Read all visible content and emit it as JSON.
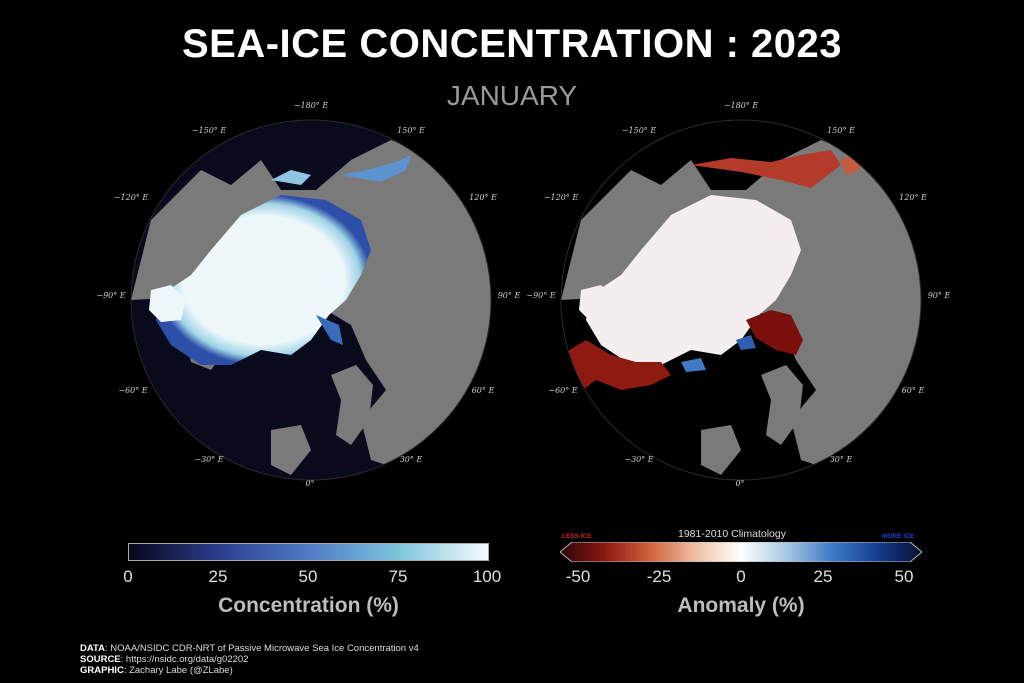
{
  "title": "SEA-ICE CONCENTRATION : 2023",
  "subtitle": "JANUARY",
  "longitude_labels": [
    "−180° E",
    "150° E",
    "120° E",
    "90° E",
    "60° E",
    "30° E",
    "0°",
    "−30° E",
    "−60° E",
    "−90° E",
    "−120° E",
    "−150° E"
  ],
  "left_colorbar": {
    "label": "Concentration (%)",
    "ticks": [
      "0",
      "25",
      "50",
      "75",
      "100"
    ],
    "colors": [
      "#05061a",
      "#2b3e8e",
      "#4f7bc4",
      "#7fc4dc",
      "#f5fbfd"
    ]
  },
  "right_colorbar": {
    "label": "Anomaly (%)",
    "ticks": [
      "-50",
      "-25",
      "0",
      "25",
      "50"
    ],
    "caption": "1981-2010 Climatology",
    "less": "LESS ICE",
    "more": "MORE ICE",
    "colors": [
      "#2a0508",
      "#8c1a10",
      "#d0623c",
      "#f0c0a4",
      "#ffffff",
      "#a8c8e4",
      "#3d7cc4",
      "#163e92",
      "#061030"
    ]
  },
  "credits": {
    "data_key": "DATA",
    "data_val": ": NOAA/NSIDC CDR-NRT of Passive Microwave Sea Ice Concentration v4",
    "source_key": "SOURCE",
    "source_val": ": https://nsidc.org/data/g02202",
    "graphic_key": "GRAPHIC",
    "graphic_val": ": Zachary Labe (@ZLabe)"
  }
}
